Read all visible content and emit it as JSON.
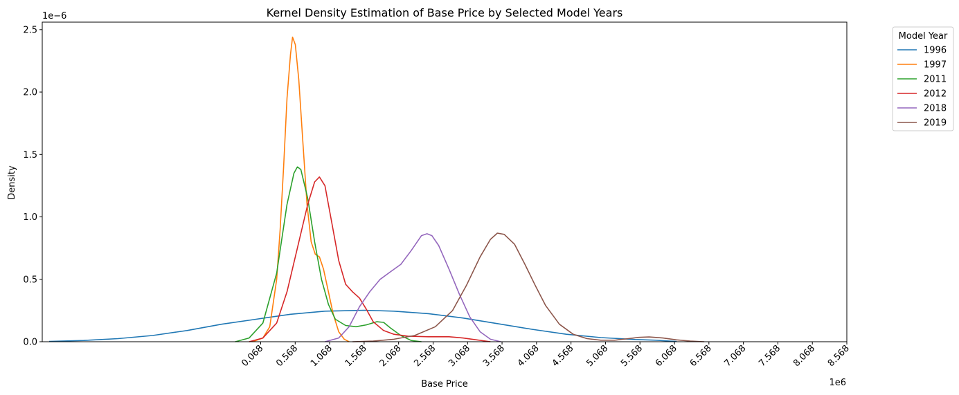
{
  "chart_data": {
    "type": "line",
    "title": "Kernel Density Estimation of Base Price by Selected Model Years",
    "xlabel": "Base Price",
    "ylabel": "Density",
    "x_offset_label": "1e6",
    "y_offset_label": "1e−6",
    "xlim": [
      -3.1,
      8.568
    ],
    "ylim": [
      0,
      2.56
    ],
    "x_ticks": [
      0.068,
      0.568,
      1.068,
      1.568,
      2.068,
      2.568,
      3.068,
      3.568,
      4.068,
      4.568,
      5.068,
      5.568,
      6.068,
      6.568,
      7.068,
      7.568,
      8.068,
      8.568
    ],
    "x_tick_labels": [
      "0.068",
      "0.568",
      "1.068",
      "1.568",
      "2.068",
      "2.568",
      "3.068",
      "3.568",
      "4.068",
      "4.568",
      "5.068",
      "5.568",
      "6.068",
      "6.568",
      "7.068",
      "7.568",
      "8.068",
      "8.568"
    ],
    "y_ticks": [
      0.0,
      0.5,
      1.0,
      1.5,
      2.0,
      2.5
    ],
    "y_tick_labels": [
      "0.0",
      "0.5",
      "1.0",
      "1.5",
      "2.0",
      "2.5"
    ],
    "grid": false,
    "legend": {
      "title": "Model Year",
      "position": "outside-top-right"
    },
    "series": [
      {
        "name": "1996",
        "color": "#1f77b4",
        "points": [
          [
            -3.0,
            0.003
          ],
          [
            -2.5,
            0.01
          ],
          [
            -2.0,
            0.025
          ],
          [
            -1.5,
            0.05
          ],
          [
            -1.0,
            0.09
          ],
          [
            -0.5,
            0.14
          ],
          [
            0.0,
            0.18
          ],
          [
            0.5,
            0.22
          ],
          [
            1.0,
            0.245
          ],
          [
            1.568,
            0.252
          ],
          [
            2.0,
            0.245
          ],
          [
            2.5,
            0.225
          ],
          [
            3.0,
            0.19
          ],
          [
            3.5,
            0.145
          ],
          [
            4.0,
            0.1
          ],
          [
            4.5,
            0.06
          ],
          [
            5.0,
            0.033
          ],
          [
            5.5,
            0.018
          ],
          [
            5.8,
            0.012
          ],
          [
            6.0,
            0.005
          ],
          [
            6.1,
            0.002
          ]
        ]
      },
      {
        "name": "1997",
        "color": "#ff7f0e",
        "points": [
          [
            -0.05,
            0.0
          ],
          [
            0.1,
            0.03
          ],
          [
            0.2,
            0.12
          ],
          [
            0.3,
            0.5
          ],
          [
            0.35,
            0.9
          ],
          [
            0.4,
            1.4
          ],
          [
            0.45,
            1.95
          ],
          [
            0.5,
            2.3
          ],
          [
            0.53,
            2.44
          ],
          [
            0.57,
            2.38
          ],
          [
            0.62,
            2.1
          ],
          [
            0.68,
            1.6
          ],
          [
            0.74,
            1.1
          ],
          [
            0.8,
            0.8
          ],
          [
            0.86,
            0.7
          ],
          [
            0.92,
            0.68
          ],
          [
            0.98,
            0.58
          ],
          [
            1.05,
            0.4
          ],
          [
            1.12,
            0.22
          ],
          [
            1.2,
            0.08
          ],
          [
            1.28,
            0.02
          ],
          [
            1.35,
            0.0
          ]
        ]
      },
      {
        "name": "2011",
        "color": "#2ca02c",
        "points": [
          [
            -0.3,
            0.0
          ],
          [
            -0.1,
            0.03
          ],
          [
            0.1,
            0.15
          ],
          [
            0.3,
            0.55
          ],
          [
            0.45,
            1.1
          ],
          [
            0.55,
            1.35
          ],
          [
            0.6,
            1.4
          ],
          [
            0.65,
            1.38
          ],
          [
            0.75,
            1.15
          ],
          [
            0.85,
            0.8
          ],
          [
            0.95,
            0.5
          ],
          [
            1.05,
            0.3
          ],
          [
            1.15,
            0.18
          ],
          [
            1.3,
            0.13
          ],
          [
            1.45,
            0.12
          ],
          [
            1.6,
            0.135
          ],
          [
            1.75,
            0.16
          ],
          [
            1.85,
            0.155
          ],
          [
            1.95,
            0.11
          ],
          [
            2.1,
            0.05
          ],
          [
            2.25,
            0.01
          ],
          [
            2.4,
            0.0
          ]
        ]
      },
      {
        "name": "2012",
        "color": "#d62728",
        "points": [
          [
            -0.1,
            0.0
          ],
          [
            0.1,
            0.03
          ],
          [
            0.3,
            0.15
          ],
          [
            0.45,
            0.4
          ],
          [
            0.6,
            0.75
          ],
          [
            0.75,
            1.1
          ],
          [
            0.85,
            1.28
          ],
          [
            0.92,
            1.32
          ],
          [
            1.0,
            1.25
          ],
          [
            1.1,
            0.95
          ],
          [
            1.2,
            0.65
          ],
          [
            1.3,
            0.46
          ],
          [
            1.4,
            0.4
          ],
          [
            1.5,
            0.35
          ],
          [
            1.6,
            0.26
          ],
          [
            1.7,
            0.16
          ],
          [
            1.85,
            0.09
          ],
          [
            2.0,
            0.06
          ],
          [
            2.2,
            0.045
          ],
          [
            2.5,
            0.04
          ],
          [
            2.8,
            0.04
          ],
          [
            3.0,
            0.03
          ],
          [
            3.2,
            0.015
          ],
          [
            3.4,
            0.0
          ]
        ]
      },
      {
        "name": "2018",
        "color": "#9467bd",
        "points": [
          [
            1.0,
            0.0
          ],
          [
            1.2,
            0.03
          ],
          [
            1.35,
            0.12
          ],
          [
            1.5,
            0.28
          ],
          [
            1.65,
            0.4
          ],
          [
            1.8,
            0.5
          ],
          [
            1.95,
            0.56
          ],
          [
            2.1,
            0.62
          ],
          [
            2.25,
            0.73
          ],
          [
            2.4,
            0.85
          ],
          [
            2.48,
            0.865
          ],
          [
            2.55,
            0.85
          ],
          [
            2.65,
            0.77
          ],
          [
            2.8,
            0.58
          ],
          [
            2.95,
            0.38
          ],
          [
            3.1,
            0.2
          ],
          [
            3.25,
            0.08
          ],
          [
            3.4,
            0.02
          ],
          [
            3.55,
            0.0
          ]
        ]
      },
      {
        "name": "2019",
        "color": "#8c564b",
        "points": [
          [
            1.4,
            0.0
          ],
          [
            1.7,
            0.005
          ],
          [
            2.0,
            0.02
          ],
          [
            2.3,
            0.05
          ],
          [
            2.6,
            0.12
          ],
          [
            2.85,
            0.25
          ],
          [
            3.05,
            0.45
          ],
          [
            3.25,
            0.68
          ],
          [
            3.4,
            0.82
          ],
          [
            3.5,
            0.87
          ],
          [
            3.6,
            0.86
          ],
          [
            3.75,
            0.78
          ],
          [
            3.9,
            0.62
          ],
          [
            4.05,
            0.45
          ],
          [
            4.2,
            0.29
          ],
          [
            4.4,
            0.14
          ],
          [
            4.6,
            0.06
          ],
          [
            4.8,
            0.025
          ],
          [
            5.0,
            0.012
          ],
          [
            5.2,
            0.012
          ],
          [
            5.4,
            0.025
          ],
          [
            5.55,
            0.035
          ],
          [
            5.7,
            0.038
          ],
          [
            5.9,
            0.03
          ],
          [
            6.1,
            0.015
          ],
          [
            6.3,
            0.005
          ],
          [
            6.5,
            0.0
          ]
        ]
      }
    ]
  }
}
